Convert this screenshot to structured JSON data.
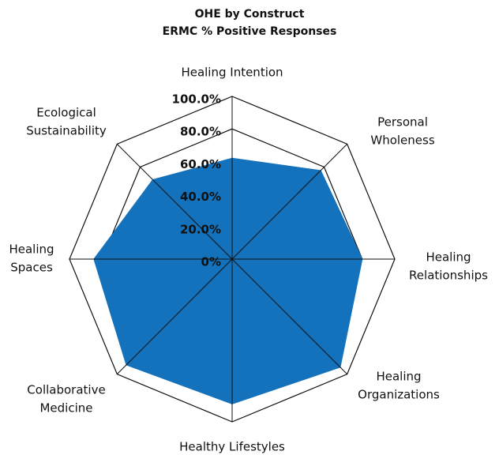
{
  "chart_data": {
    "type": "radar",
    "title": "OHE by Construct",
    "subtitle": "ERMC % Positive Responses",
    "categories": [
      "Healing Intention",
      "Personal Wholeness",
      "Healing Relationships",
      "Healing Organizations",
      "Healthy Lifestyles",
      "Collaborative Medicine",
      "Healing Spaces",
      "Ecological Sustainability"
    ],
    "values": [
      62,
      77,
      80,
      94,
      89,
      92,
      85,
      69
    ],
    "color": "#1472bc",
    "rlim": [
      0,
      100
    ],
    "rticks": [
      {
        "value": 0,
        "label": "0%"
      },
      {
        "value": 20,
        "label": "20.0%"
      },
      {
        "value": 40,
        "label": "40.0%"
      },
      {
        "value": 60,
        "label": "60.0%"
      },
      {
        "value": 80,
        "label": "80.0%"
      },
      {
        "value": 100,
        "label": "100.0%"
      }
    ],
    "grid": true
  }
}
